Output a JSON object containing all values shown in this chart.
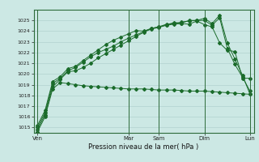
{
  "background_color": "#cce8e4",
  "grid_color": "#aaccca",
  "line_color": "#1a6b2a",
  "title": "Pression niveau de la mer( hPa )",
  "ylim": [
    1014.5,
    1026.0
  ],
  "yticks": [
    1015,
    1016,
    1017,
    1018,
    1019,
    1020,
    1021,
    1022,
    1023,
    1024,
    1025
  ],
  "day_labels": [
    "Ven",
    "",
    "Mar",
    "Sam",
    "",
    "Dim",
    "",
    "Lun"
  ],
  "day_tick_labels": [
    "Ven",
    "Mar",
    "Sam",
    "Dim",
    "Lun"
  ],
  "day_tick_positions": [
    0,
    12,
    16,
    22,
    28
  ],
  "n_points": 29,
  "series1": [
    1014.6,
    1016.0,
    1018.6,
    1019.2,
    1019.1,
    1019.0,
    1018.9,
    1018.85,
    1018.8,
    1018.75,
    1018.7,
    1018.65,
    1018.6,
    1018.6,
    1018.6,
    1018.55,
    1018.5,
    1018.5,
    1018.5,
    1018.45,
    1018.4,
    1018.4,
    1018.4,
    1018.35,
    1018.3,
    1018.25,
    1018.2,
    1018.15,
    1018.1
  ],
  "series2": [
    1014.8,
    1016.2,
    1018.8,
    1019.5,
    1020.2,
    1020.3,
    1020.6,
    1021.0,
    1021.5,
    1021.9,
    1022.3,
    1022.7,
    1023.1,
    1023.5,
    1023.9,
    1024.2,
    1024.35,
    1024.55,
    1024.65,
    1024.7,
    1024.65,
    1024.95,
    1024.6,
    1024.4,
    1022.9,
    1022.2,
    1022.1,
    1019.6,
    1019.6
  ],
  "series3": [
    1015.0,
    1016.4,
    1019.1,
    1019.6,
    1020.3,
    1020.6,
    1021.1,
    1021.6,
    1022.0,
    1022.3,
    1022.6,
    1023.0,
    1023.35,
    1023.65,
    1023.95,
    1024.25,
    1024.4,
    1024.65,
    1024.7,
    1024.85,
    1024.95,
    1025.0,
    1025.0,
    1024.55,
    1025.25,
    1022.4,
    1020.9,
    1019.7,
    1018.4
  ],
  "series4": [
    1015.2,
    1016.6,
    1019.3,
    1019.75,
    1020.5,
    1020.7,
    1021.25,
    1021.75,
    1022.25,
    1022.75,
    1023.15,
    1023.45,
    1023.75,
    1024.05,
    1024.0,
    1024.25,
    1024.4,
    1024.6,
    1024.8,
    1024.75,
    1025.0,
    1025.0,
    1025.2,
    1024.7,
    1025.5,
    1022.9,
    1021.4,
    1019.9,
    1018.1
  ]
}
